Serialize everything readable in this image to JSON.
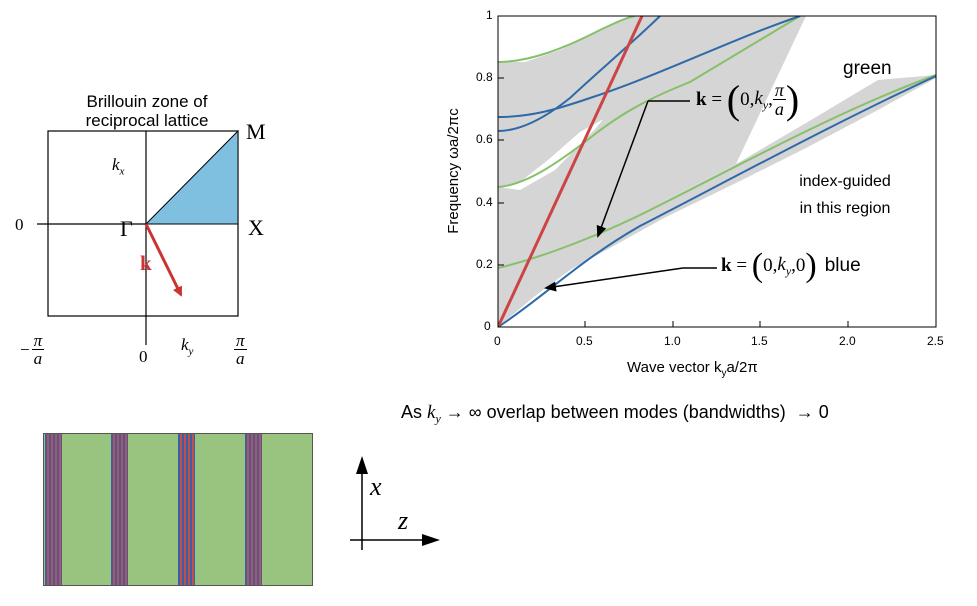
{
  "bz": {
    "title_line1": "Brillouin zone of",
    "title_line2": "reciprocal lattice",
    "label_M": "M",
    "label_X": "X",
    "label_Gamma": "Γ",
    "label_zero_left": "0",
    "label_zero_bottom": "0",
    "label_kx": "k",
    "label_kx_sub": "x",
    "label_ky": "k",
    "label_ky_sub": "y",
    "label_k_vec": "k",
    "neg_pi_sign": "−",
    "pi": "π",
    "a": "a",
    "colors": {
      "irreducible_zone": "#7fc0e0",
      "k_arrow": "#cc3333"
    }
  },
  "axes_sketch": {
    "x_label": "x",
    "z_label": "z"
  },
  "structure": {
    "colors": {
      "green": "#99c47f",
      "stripe_red": "#c0504d",
      "stripe_blue": "#3a5ea8"
    }
  },
  "plot": {
    "ylabel": "Frequency  ωa/2πc",
    "xlabel_prefix": "Wave vector  k",
    "xlabel_sub": "y",
    "xlabel_suffix": "a/2π",
    "x_ticks": [
      "0",
      "0.5",
      "1.0",
      "1.5",
      "2.0",
      "2.5"
    ],
    "y_ticks": [
      "0",
      "0.2",
      "0.4",
      "0.6",
      "0.8",
      "1"
    ],
    "xlim": [
      0,
      2.5
    ],
    "ylim": [
      0,
      1
    ],
    "colors": {
      "green": "#86c06a",
      "blue": "#2e6aa8",
      "red": "#cc4444",
      "shade": "#d5d5d5"
    }
  },
  "annotations": {
    "green_bold_k": "k",
    "green_eq": " = ",
    "green_open": "(0,",
    "green_k": "k",
    "green_sub": "y",
    "green_comma": ",",
    "green_pi": "π",
    "green_a": "a",
    "green_word": "green",
    "blue_bold_k": "k",
    "blue_eq": " = ",
    "blue_open": "(0,",
    "blue_k": "k",
    "blue_sub": "y",
    "blue_close": ",0)",
    "blue_word": "blue",
    "index_guided_1": "index-guided",
    "index_guided_2": "in this region"
  },
  "bottom": {
    "prefix": "As ",
    "k": "k",
    "sub": "y",
    "middle": " → ∞ overlap between modes (bandwidths)  → 0"
  }
}
